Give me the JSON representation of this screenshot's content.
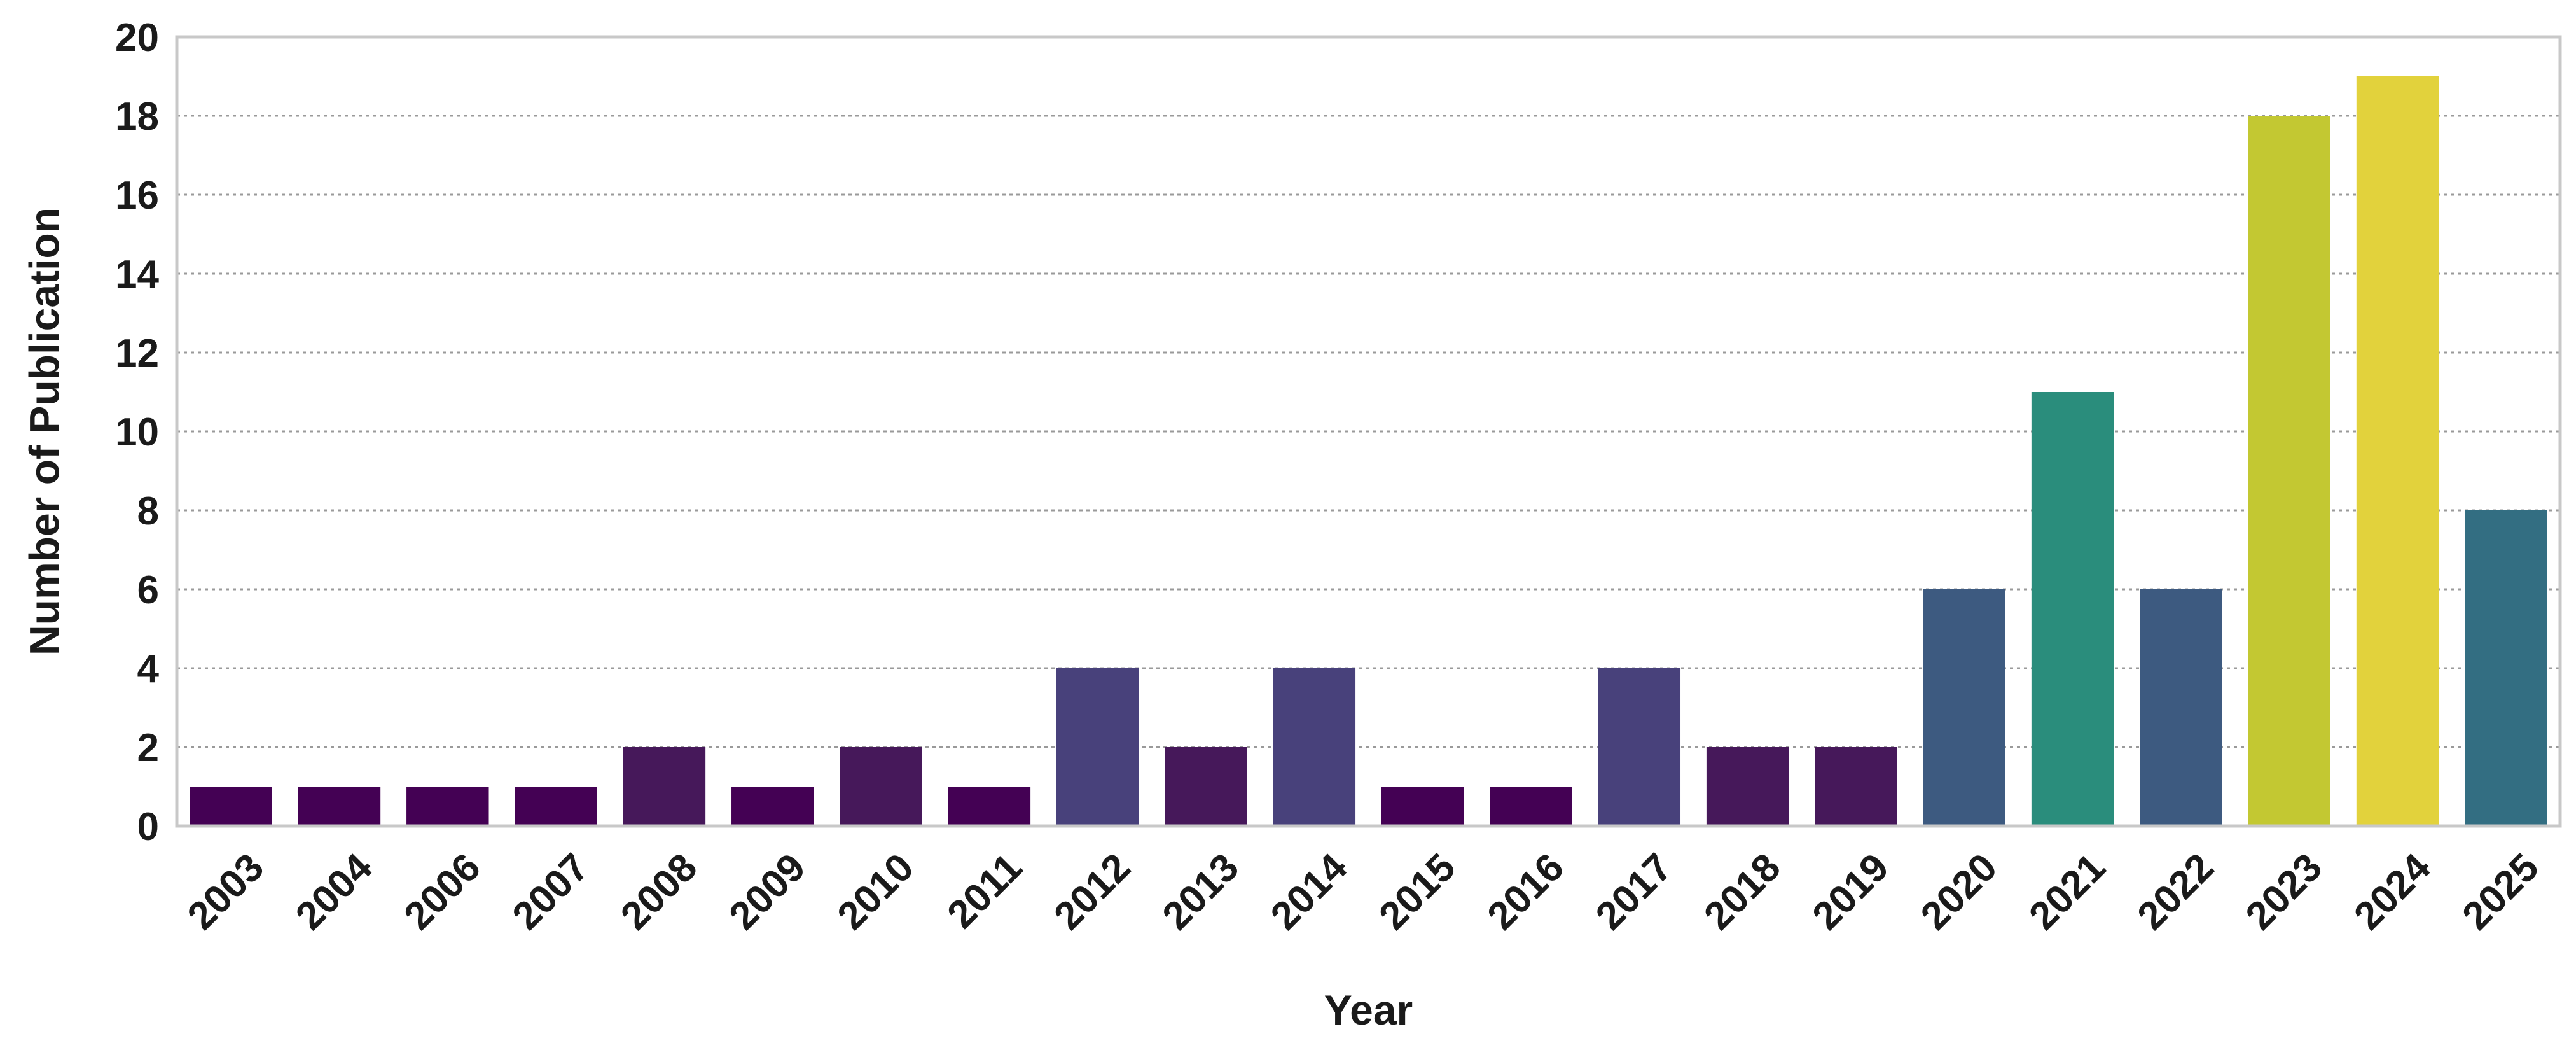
{
  "chart_data": {
    "type": "bar",
    "title": "",
    "xlabel": "Year",
    "ylabel": "Number of Publication",
    "ylim": [
      0,
      20
    ],
    "yticks": [
      0,
      2,
      4,
      6,
      8,
      10,
      12,
      14,
      16,
      18,
      20
    ],
    "grid": "horizontal dotted",
    "categories": [
      "2003",
      "2004",
      "2006",
      "2007",
      "2008",
      "2009",
      "2010",
      "2011",
      "2012",
      "2013",
      "2014",
      "2015",
      "2016",
      "2017",
      "2018",
      "2019",
      "2020",
      "2021",
      "2022",
      "2023",
      "2024",
      "2025"
    ],
    "values": [
      1,
      1,
      1,
      1,
      2,
      1,
      2,
      1,
      4,
      2,
      4,
      1,
      1,
      4,
      2,
      2,
      6,
      11,
      6,
      18,
      19,
      8
    ],
    "colormap": {
      "1": "#440154",
      "2": "#46185a",
      "4": "#48417b",
      "6": "#3d5a80",
      "8": "#336e82",
      "11": "#2a8d7c",
      "18": "#c3c832",
      "19": "#e2d23c"
    }
  }
}
